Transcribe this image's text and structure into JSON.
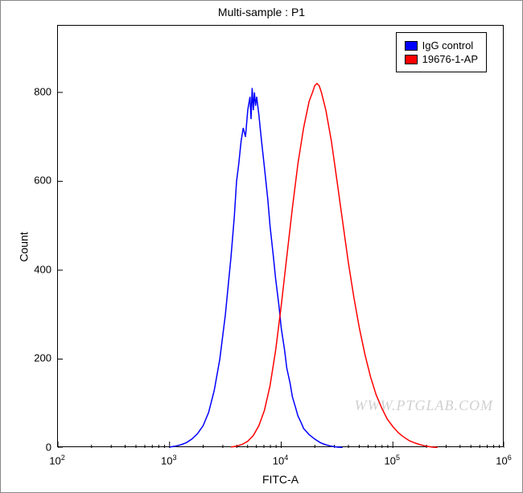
{
  "chart": {
    "type": "histogram-line",
    "title": "Multi-sample : P1",
    "xlabel": "FITC-A",
    "ylabel": "Count",
    "background_color": "#ffffff",
    "border_color": "#000000",
    "outer_border_color": "#888888",
    "title_fontsize": 14,
    "label_fontsize": 14,
    "tick_fontsize": 13,
    "x_scale": "log",
    "xlim_exp": [
      2,
      6
    ],
    "x_tick_exponents": [
      2,
      3,
      4,
      5,
      6
    ],
    "y_scale": "linear",
    "ylim": [
      0,
      950
    ],
    "y_ticks": [
      0,
      200,
      400,
      600,
      800
    ],
    "minor_log_ticks": true,
    "line_width": 1.5,
    "legend": {
      "position": "top-right",
      "border_color": "#000000",
      "items": [
        {
          "label": "IgG control",
          "color": "#0000ff"
        },
        {
          "label": "19676-1-AP",
          "color": "#ff0000"
        }
      ]
    },
    "watermark": "WWW.PTGLAB.COM",
    "series": [
      {
        "name": "IgG control",
        "color": "#0000ff",
        "points": [
          [
            3.0,
            2
          ],
          [
            3.05,
            4
          ],
          [
            3.1,
            7
          ],
          [
            3.15,
            12
          ],
          [
            3.2,
            20
          ],
          [
            3.25,
            32
          ],
          [
            3.3,
            50
          ],
          [
            3.35,
            80
          ],
          [
            3.4,
            130
          ],
          [
            3.45,
            200
          ],
          [
            3.5,
            300
          ],
          [
            3.55,
            430
          ],
          [
            3.58,
            520
          ],
          [
            3.6,
            600
          ],
          [
            3.62,
            640
          ],
          [
            3.64,
            690
          ],
          [
            3.66,
            720
          ],
          [
            3.68,
            700
          ],
          [
            3.7,
            760
          ],
          [
            3.72,
            790
          ],
          [
            3.73,
            740
          ],
          [
            3.74,
            810
          ],
          [
            3.75,
            760
          ],
          [
            3.76,
            800
          ],
          [
            3.77,
            770
          ],
          [
            3.78,
            790
          ],
          [
            3.8,
            750
          ],
          [
            3.82,
            700
          ],
          [
            3.85,
            630
          ],
          [
            3.88,
            560
          ],
          [
            3.9,
            500
          ],
          [
            3.93,
            430
          ],
          [
            3.95,
            380
          ],
          [
            3.98,
            320
          ],
          [
            4.0,
            270
          ],
          [
            4.03,
            220
          ],
          [
            4.05,
            180
          ],
          [
            4.08,
            145
          ],
          [
            4.1,
            115
          ],
          [
            4.13,
            90
          ],
          [
            4.15,
            72
          ],
          [
            4.18,
            56
          ],
          [
            4.2,
            44
          ],
          [
            4.25,
            30
          ],
          [
            4.3,
            20
          ],
          [
            4.35,
            12
          ],
          [
            4.4,
            7
          ],
          [
            4.45,
            4
          ],
          [
            4.5,
            2
          ],
          [
            4.55,
            1
          ]
        ]
      },
      {
        "name": "19676-1-AP",
        "color": "#ff0000",
        "points": [
          [
            3.55,
            2
          ],
          [
            3.6,
            4
          ],
          [
            3.65,
            8
          ],
          [
            3.7,
            15
          ],
          [
            3.75,
            28
          ],
          [
            3.8,
            50
          ],
          [
            3.85,
            85
          ],
          [
            3.9,
            140
          ],
          [
            3.95,
            220
          ],
          [
            4.0,
            320
          ],
          [
            4.05,
            430
          ],
          [
            4.1,
            540
          ],
          [
            4.15,
            640
          ],
          [
            4.2,
            720
          ],
          [
            4.25,
            780
          ],
          [
            4.28,
            800
          ],
          [
            4.3,
            815
          ],
          [
            4.32,
            820
          ],
          [
            4.34,
            815
          ],
          [
            4.36,
            800
          ],
          [
            4.4,
            760
          ],
          [
            4.45,
            690
          ],
          [
            4.5,
            600
          ],
          [
            4.55,
            510
          ],
          [
            4.6,
            420
          ],
          [
            4.65,
            340
          ],
          [
            4.7,
            270
          ],
          [
            4.75,
            210
          ],
          [
            4.8,
            160
          ],
          [
            4.85,
            120
          ],
          [
            4.9,
            90
          ],
          [
            4.95,
            65
          ],
          [
            5.0,
            48
          ],
          [
            5.05,
            34
          ],
          [
            5.1,
            24
          ],
          [
            5.15,
            16
          ],
          [
            5.2,
            11
          ],
          [
            5.25,
            7
          ],
          [
            5.3,
            4
          ],
          [
            5.35,
            2
          ],
          [
            5.4,
            1
          ]
        ]
      }
    ]
  }
}
